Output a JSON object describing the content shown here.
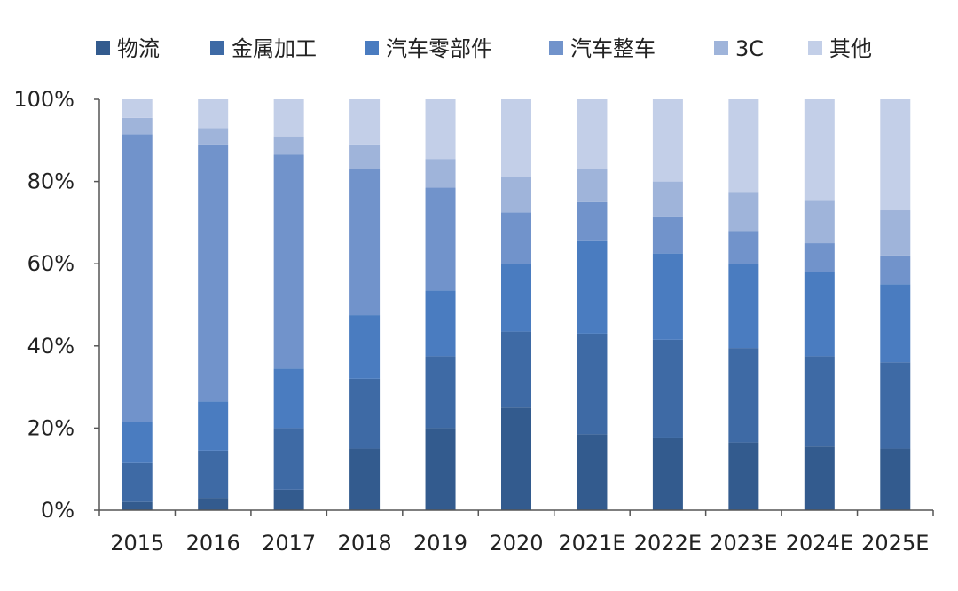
{
  "chart_data": {
    "type": "bar",
    "stacked": true,
    "percent": true,
    "title": "",
    "xlabel": "",
    "ylabel": "",
    "ylim": [
      0,
      100
    ],
    "yticks": [
      "0%",
      "20%",
      "40%",
      "60%",
      "80%",
      "100%"
    ],
    "ytick_values": [
      0,
      20,
      40,
      60,
      80,
      100
    ],
    "legend_position": "top",
    "categories": [
      "2015",
      "2016",
      "2017",
      "2018",
      "2019",
      "2020",
      "2021E",
      "2022E",
      "2023E",
      "2024E",
      "2025E"
    ],
    "series": [
      {
        "name": "物流",
        "color": "#335b8e",
        "values": [
          2,
          3,
          5,
          15,
          20,
          25,
          18.5,
          17.5,
          16.5,
          15.5,
          15
        ]
      },
      {
        "name": "金属加工",
        "color": "#3e6aa5",
        "values": [
          9.5,
          11.5,
          15,
          17,
          17.5,
          18.5,
          24.5,
          24,
          23,
          22,
          21
        ]
      },
      {
        "name": "汽车零部件",
        "color": "#4a7cc0",
        "values": [
          10,
          12,
          14.5,
          15.5,
          16,
          16.5,
          22.5,
          21,
          20.5,
          20.5,
          19
        ]
      },
      {
        "name": "汽车整车",
        "color": "#7193cb",
        "values": [
          70,
          62.5,
          52,
          35.5,
          25,
          12.5,
          9.5,
          9,
          8,
          7,
          7
        ]
      },
      {
        "name": "3C",
        "color": "#9fb4da",
        "values": [
          4,
          4,
          4.5,
          6,
          7,
          8.5,
          8,
          8.5,
          9.5,
          10.5,
          11
        ]
      },
      {
        "name": "其他",
        "color": "#c3cfe8",
        "values": [
          4.5,
          7,
          9,
          11,
          14.5,
          19,
          17,
          20,
          22.5,
          24.5,
          27
        ]
      }
    ]
  }
}
